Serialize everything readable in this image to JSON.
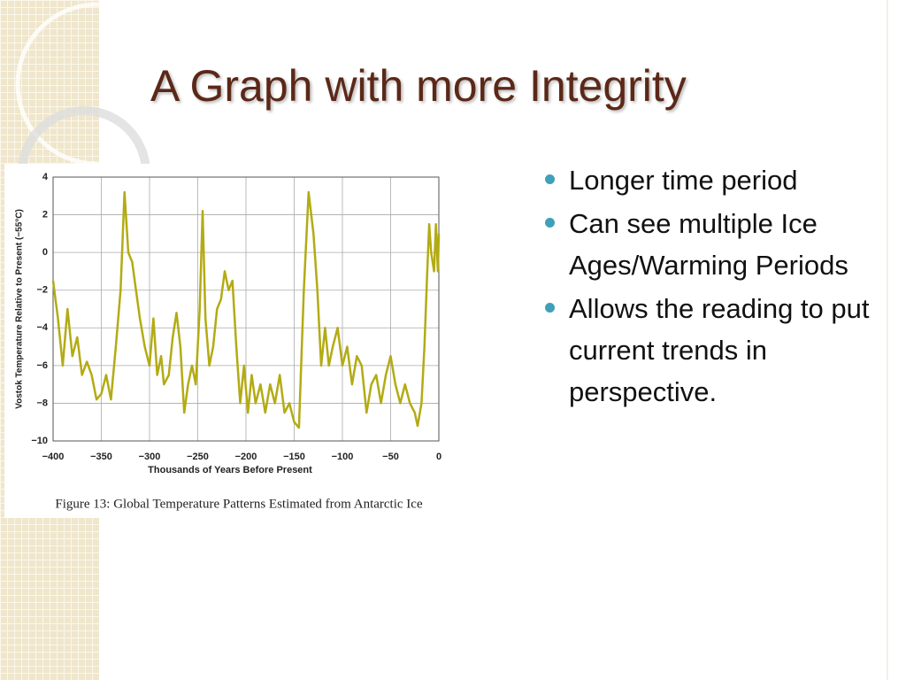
{
  "title": "A Graph with more Integrity",
  "bullets": [
    "Longer time period",
    "Can see multiple Ice Ages/Warming Periods",
    "Allows the reading to put current trends in perspective."
  ],
  "chart_data": {
    "type": "line",
    "caption": "Figure 13: Global Temperature Patterns Estimated from Antarctic Ice",
    "x_label": "Thousands of Years Before Present",
    "y_label": "Vostok Temperature Relative to Present (−55°C)",
    "color": "#b3ab14",
    "grid": true,
    "xlim": [
      -400,
      0
    ],
    "ylim": [
      -10,
      4
    ],
    "xticks": [
      {
        "value": -400,
        "label": "−400"
      },
      {
        "value": -350,
        "label": "−350"
      },
      {
        "value": -300,
        "label": "−300"
      },
      {
        "value": -250,
        "label": "−250"
      },
      {
        "value": -200,
        "label": "−200"
      },
      {
        "value": -150,
        "label": "−150"
      },
      {
        "value": -100,
        "label": "−100"
      },
      {
        "value": -50,
        "label": "−50"
      },
      0
    ],
    "yticks": [
      4,
      2,
      0,
      {
        "value": -2,
        "label": "−2"
      },
      {
        "value": -4,
        "label": "−4"
      },
      {
        "value": -6,
        "label": "−6"
      },
      {
        "value": -8,
        "label": "−8"
      },
      {
        "value": -10,
        "label": "−10"
      }
    ],
    "x": [
      -400,
      -395,
      -390,
      -385,
      -380,
      -375,
      -370,
      -365,
      -360,
      -355,
      -350,
      -345,
      -340,
      -335,
      -330,
      -326,
      -322,
      -318,
      -314,
      -310,
      -305,
      -300,
      -296,
      -292,
      -288,
      -285,
      -280,
      -276,
      -272,
      -268,
      -264,
      -260,
      -256,
      -252,
      -248,
      -245,
      -242,
      -238,
      -234,
      -230,
      -226,
      -222,
      -218,
      -214,
      -210,
      -206,
      -202,
      -198,
      -194,
      -190,
      -185,
      -180,
      -175,
      -170,
      -165,
      -160,
      -155,
      -150,
      -145,
      -140,
      -135,
      -130,
      -126,
      -122,
      -118,
      -114,
      -110,
      -105,
      -100,
      -95,
      -90,
      -85,
      -80,
      -75,
      -70,
      -65,
      -60,
      -55,
      -50,
      -45,
      -40,
      -35,
      -30,
      -25,
      -22,
      -18,
      -15,
      -12,
      -10,
      -8,
      -5,
      -3,
      -1,
      0
    ],
    "values": [
      -1.5,
      -3.5,
      -6,
      -3,
      -5.5,
      -4.5,
      -6.5,
      -5.8,
      -6.5,
      -7.8,
      -7.5,
      -6.5,
      -7.8,
      -5,
      -2,
      3.2,
      0,
      -0.5,
      -2,
      -3.5,
      -5,
      -6,
      -3.5,
      -6.5,
      -5.5,
      -7,
      -6.5,
      -4.5,
      -3.2,
      -5,
      -8.5,
      -7,
      -6,
      -7,
      -3,
      2.2,
      -3.5,
      -6,
      -5,
      -3,
      -2.5,
      -1,
      -2,
      -1.5,
      -5,
      -8,
      -6,
      -8.5,
      -6.5,
      -8,
      -7,
      -8.5,
      -7,
      -8,
      -6.5,
      -8.5,
      -8,
      -9,
      -9.3,
      -2,
      3.2,
      1,
      -2,
      -6,
      -4,
      -6,
      -5,
      -4,
      -6,
      -5,
      -7,
      -5.5,
      -6,
      -8.5,
      -7,
      -6.5,
      -8,
      -6.5,
      -5.5,
      -7,
      -8,
      -7,
      -8,
      -8.5,
      -9.2,
      -8,
      -5,
      -1,
      1.5,
      0,
      -1,
      1.5,
      -1,
      1
    ]
  }
}
